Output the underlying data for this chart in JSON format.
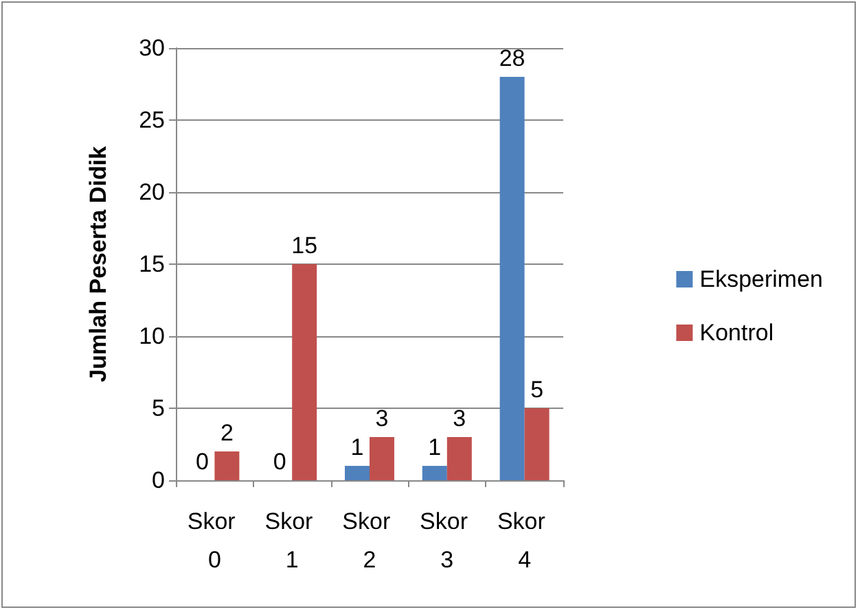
{
  "chart_data": {
    "type": "bar",
    "ylabel": "Jumlah Peserta Didik",
    "categories": [
      "Skor 0",
      "Skor 1",
      "Skor 2",
      "Skor 3",
      "Skor 4"
    ],
    "series": [
      {
        "name": "Eksperimen",
        "color": "#4f81bd",
        "values": [
          0,
          0,
          1,
          1,
          28
        ]
      },
      {
        "name": "Kontrol",
        "color": "#c0504d",
        "values": [
          2,
          15,
          3,
          3,
          5
        ]
      }
    ],
    "ylim": [
      0,
      30
    ],
    "yticks": [
      0,
      5,
      10,
      15,
      20,
      25,
      30
    ],
    "grid": "y",
    "legend": "right",
    "data_labels": true
  }
}
